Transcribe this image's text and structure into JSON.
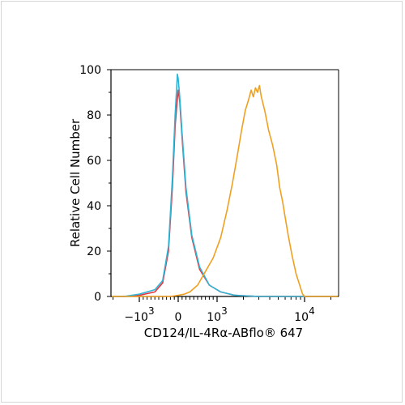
{
  "chart_data": {
    "type": "line",
    "title": "",
    "xlabel": "CD124/IL-4Rα-ABflo® 647",
    "ylabel": "Relative Cell Number",
    "x_scale": "biexponential",
    "xlim": [
      -3000,
      50000
    ],
    "ylim": [
      0,
      100
    ],
    "y_ticks": [
      "0",
      "20",
      "40",
      "60",
      "80",
      "100"
    ],
    "x_ticks": [
      {
        "value": -1000,
        "base": "−10",
        "exp": "3"
      },
      {
        "value": 0,
        "base": "0",
        "exp": ""
      },
      {
        "value": 1000,
        "base": "10",
        "exp": "3"
      },
      {
        "value": 10000,
        "base": "10",
        "exp": "4"
      }
    ],
    "grid": false,
    "legend": "none",
    "series": [
      {
        "color": "#e8323c",
        "points": [
          [
            -3000,
            0
          ],
          [
            -1500,
            0
          ],
          [
            -1000,
            0.5
          ],
          [
            -600,
            2
          ],
          [
            -400,
            6
          ],
          [
            -250,
            20
          ],
          [
            -150,
            48
          ],
          [
            -80,
            75
          ],
          [
            -30,
            86
          ],
          [
            0,
            91
          ],
          [
            40,
            86
          ],
          [
            100,
            70
          ],
          [
            200,
            46
          ],
          [
            350,
            26
          ],
          [
            550,
            12
          ],
          [
            800,
            5
          ],
          [
            1100,
            2
          ],
          [
            1600,
            0.5
          ],
          [
            3000,
            0
          ],
          [
            50000,
            0
          ]
        ]
      },
      {
        "color": "#2fb4d6",
        "points": [
          [
            -3000,
            0
          ],
          [
            -1500,
            0
          ],
          [
            -1000,
            1
          ],
          [
            -600,
            3
          ],
          [
            -400,
            7
          ],
          [
            -250,
            22
          ],
          [
            -150,
            52
          ],
          [
            -80,
            80
          ],
          [
            -40,
            92
          ],
          [
            -20,
            98
          ],
          [
            0,
            96
          ],
          [
            40,
            88
          ],
          [
            100,
            72
          ],
          [
            200,
            48
          ],
          [
            350,
            27
          ],
          [
            550,
            13
          ],
          [
            800,
            5
          ],
          [
            1100,
            2
          ],
          [
            1600,
            0.5
          ],
          [
            3000,
            0
          ],
          [
            50000,
            0
          ]
        ]
      },
      {
        "color": "#f0a020",
        "points": [
          [
            -3000,
            0
          ],
          [
            -200,
            0
          ],
          [
            0,
            0.5
          ],
          [
            150,
            1
          ],
          [
            300,
            2
          ],
          [
            500,
            5
          ],
          [
            700,
            11
          ],
          [
            900,
            17
          ],
          [
            1100,
            26
          ],
          [
            1300,
            38
          ],
          [
            1500,
            50
          ],
          [
            1700,
            62
          ],
          [
            1900,
            73
          ],
          [
            2100,
            82
          ],
          [
            2300,
            87
          ],
          [
            2450,
            91
          ],
          [
            2600,
            88
          ],
          [
            2750,
            92
          ],
          [
            2900,
            90
          ],
          [
            3050,
            93
          ],
          [
            3200,
            88
          ],
          [
            3500,
            82
          ],
          [
            3900,
            73
          ],
          [
            4300,
            67
          ],
          [
            4800,
            58
          ],
          [
            5200,
            48
          ],
          [
            5600,
            42
          ],
          [
            6000,
            35
          ],
          [
            6500,
            27
          ],
          [
            7200,
            18
          ],
          [
            8000,
            10
          ],
          [
            8800,
            5
          ],
          [
            9500,
            1
          ],
          [
            10000,
            0
          ],
          [
            50000,
            0
          ]
        ]
      }
    ]
  }
}
